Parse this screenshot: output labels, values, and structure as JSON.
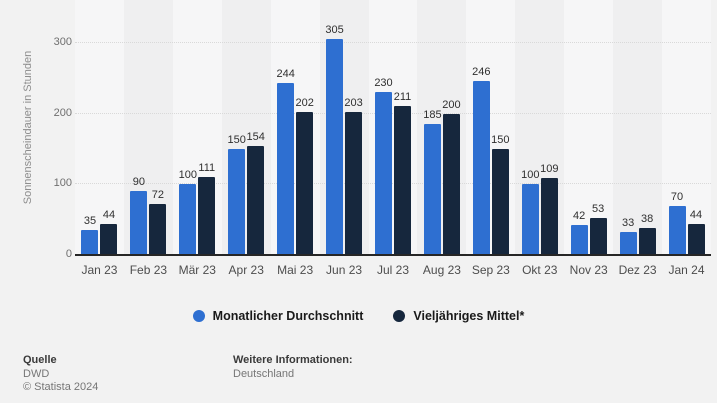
{
  "chart_data": {
    "type": "bar",
    "title": "",
    "categories": [
      "Jan 23",
      "Feb 23",
      "Mär 23",
      "Apr 23",
      "Mai 23",
      "Jun 23",
      "Jul 23",
      "Aug 23",
      "Sep 23",
      "Okt 23",
      "Nov 23",
      "Dez 23",
      "Jan 24"
    ],
    "series": [
      {
        "name": "Monatlicher Durchschnitt",
        "color": "#2e6fd1",
        "values": [
          35,
          90,
          100,
          150,
          244,
          305,
          230,
          185,
          246,
          100,
          42,
          33,
          70
        ]
      },
      {
        "name": "Vieljähriges Mittel*",
        "color": "#16273d",
        "values": [
          44,
          72,
          111,
          154,
          202,
          203,
          211,
          200,
          150,
          109,
          53,
          38,
          44
        ]
      }
    ],
    "xlabel": "",
    "ylabel": "Sonnenscheindauer in Stunden",
    "yticks": [
      0,
      100,
      200,
      300
    ],
    "ylim": [
      0,
      320
    ],
    "grid": "horizontal-dotted",
    "legend_position": "bottom-center"
  },
  "legend": {
    "items": [
      {
        "label": "Monatlicher Durchschnitt",
        "color": "#2e6fd1"
      },
      {
        "label": "Vieljähriges Mittel*",
        "color": "#16273d"
      }
    ]
  },
  "footer": {
    "source_label": "Quelle",
    "source_value": "DWD",
    "copyright": "© Statista 2024",
    "info_label": "Weitere Informationen:",
    "info_value": "Deutschland"
  },
  "colors": {
    "background": "#f2f2f2",
    "stripe_light": "#f6f6f7",
    "stripe_dark": "#efeff0",
    "gridline": "#d9d9d9",
    "axis_line": "#262626",
    "series_blue": "#2e6fd1",
    "series_navy": "#16273d"
  }
}
